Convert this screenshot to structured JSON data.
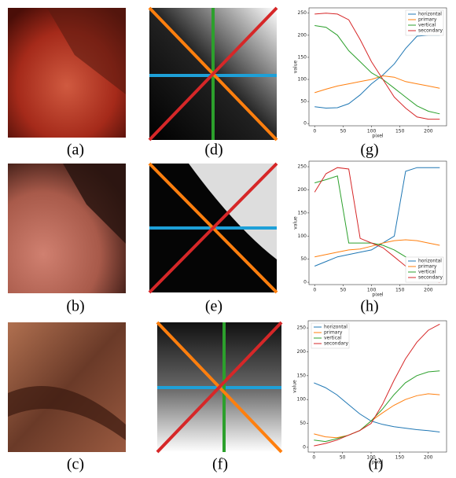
{
  "panel_labels": [
    "(a)",
    "(d)",
    "(g)",
    "(b)",
    "(e)",
    "(h)",
    "(c)",
    "(f)",
    "(i)"
  ],
  "chart_data": [
    {
      "type": "line",
      "xlabel": "pixel",
      "ylabel": "value",
      "legend": "upper right",
      "x": [
        0,
        20,
        40,
        60,
        80,
        100,
        120,
        140,
        160,
        180,
        200,
        220
      ],
      "xlim": [
        -10,
        232
      ],
      "xticks": [
        0,
        50,
        100,
        150,
        200
      ],
      "ylim": [
        -5,
        262
      ],
      "yticks": [
        0,
        50,
        100,
        150,
        200,
        250
      ],
      "series": [
        {
          "name": "horizontal",
          "color": "#1f77b4",
          "values": [
            38,
            35,
            36,
            45,
            65,
            90,
            110,
            135,
            170,
            198,
            200,
            200
          ]
        },
        {
          "name": "primary",
          "color": "#ff7f0e",
          "values": [
            70,
            78,
            85,
            90,
            95,
            100,
            108,
            105,
            95,
            90,
            85,
            80
          ]
        },
        {
          "name": "vertical",
          "color": "#2ca02c",
          "values": [
            222,
            218,
            200,
            165,
            140,
            115,
            100,
            80,
            60,
            40,
            28,
            22
          ]
        },
        {
          "name": "secondary",
          "color": "#d62728",
          "values": [
            248,
            250,
            248,
            235,
            190,
            140,
            100,
            60,
            35,
            15,
            10,
            10
          ]
        }
      ]
    },
    {
      "type": "line",
      "xlabel": "pixel",
      "ylabel": "value",
      "legend": "lower right",
      "x": [
        0,
        20,
        40,
        60,
        80,
        100,
        120,
        140,
        160,
        180,
        200,
        220
      ],
      "xlim": [
        -10,
        232
      ],
      "xticks": [
        0,
        50,
        100,
        150,
        200
      ],
      "ylim": [
        -5,
        262
      ],
      "yticks": [
        0,
        50,
        100,
        150,
        200,
        250
      ],
      "series": [
        {
          "name": "horizontal",
          "color": "#1f77b4",
          "values": [
            35,
            45,
            55,
            60,
            65,
            70,
            85,
            100,
            240,
            248,
            248,
            248
          ]
        },
        {
          "name": "primary",
          "color": "#ff7f0e",
          "values": [
            55,
            60,
            65,
            70,
            72,
            78,
            85,
            90,
            92,
            90,
            85,
            80
          ]
        },
        {
          "name": "vertical",
          "color": "#2ca02c",
          "values": [
            215,
            222,
            230,
            85,
            85,
            85,
            80,
            70,
            55,
            40,
            30,
            20
          ]
        },
        {
          "name": "secondary",
          "color": "#d62728",
          "values": [
            195,
            235,
            248,
            245,
            95,
            85,
            75,
            55,
            35,
            20,
            8,
            0
          ]
        }
      ]
    },
    {
      "type": "line",
      "xlabel": "pixel",
      "ylabel": "value",
      "legend": "upper left",
      "x": [
        0,
        20,
        40,
        60,
        80,
        100,
        120,
        140,
        160,
        180,
        200,
        220
      ],
      "xlim": [
        -10,
        232
      ],
      "xticks": [
        0,
        50,
        100,
        150,
        200
      ],
      "ylim": [
        -10,
        265
      ],
      "yticks": [
        0,
        50,
        100,
        150,
        200,
        250
      ],
      "series": [
        {
          "name": "horizontal",
          "color": "#1f77b4",
          "values": [
            135,
            125,
            110,
            90,
            70,
            55,
            48,
            43,
            40,
            37,
            35,
            32
          ]
        },
        {
          "name": "primary",
          "color": "#ff7f0e",
          "values": [
            28,
            22,
            20,
            25,
            35,
            55,
            72,
            88,
            100,
            108,
            112,
            110
          ]
        },
        {
          "name": "vertical",
          "color": "#2ca02c",
          "values": [
            15,
            12,
            18,
            25,
            35,
            55,
            80,
            110,
            135,
            150,
            158,
            160
          ]
        },
        {
          "name": "secondary",
          "color": "#d62728",
          "values": [
            3,
            8,
            15,
            25,
            35,
            50,
            90,
            140,
            185,
            220,
            245,
            258
          ]
        }
      ]
    }
  ]
}
